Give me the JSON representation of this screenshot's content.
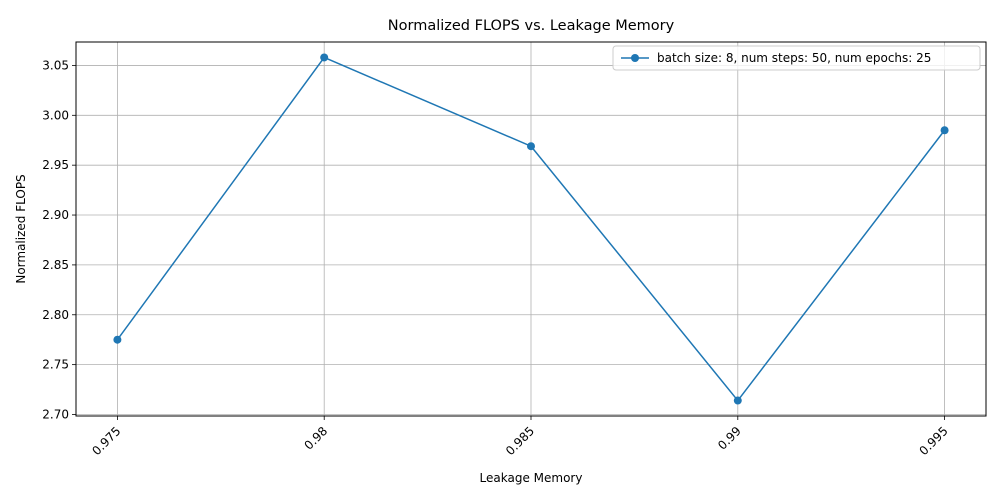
{
  "chart_data": {
    "type": "line",
    "title": "Normalized FLOPS vs. Leakage Memory",
    "xlabel": "Leakage Memory",
    "ylabel": "Normalized FLOPS",
    "categories": [
      "0.975",
      "0.98",
      "0.985",
      "0.99",
      "0.995"
    ],
    "series": [
      {
        "name": "batch size: 8, num steps: 50, num epochs: 25",
        "values": [
          2.775,
          3.058,
          2.969,
          2.714,
          2.985
        ],
        "color": "#1f77b4",
        "marker": "circle"
      }
    ],
    "ylim": [
      2.6985,
      3.0735
    ],
    "yticks": [
      "2.70",
      "2.75",
      "2.80",
      "2.85",
      "2.90",
      "2.95",
      "3.00",
      "3.05"
    ],
    "xtick_rotation": 45,
    "grid": true,
    "legend_position": "top-right"
  }
}
